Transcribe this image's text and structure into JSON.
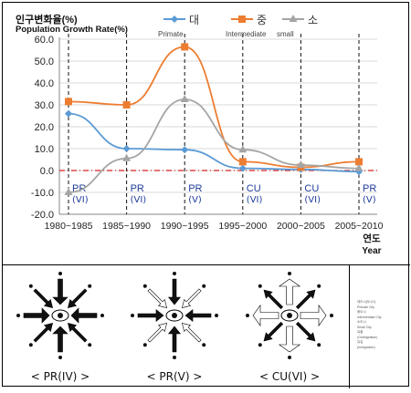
{
  "chart_data": {
    "type": "line",
    "ylabel_ko": "인구변화율(%)",
    "ylabel_en": "Population Growth Rate(%)",
    "xlabel_ko": "연도",
    "xlabel_en": "Year",
    "categories": [
      "1980~1985",
      "1985~1990",
      "1990~1995",
      "1995~2000",
      "2000~2005",
      "2005~2010"
    ],
    "ylim": [
      -20,
      60
    ],
    "yticks": [
      "60.0",
      "50.0",
      "40.0",
      "30.0",
      "20.0",
      "10.0",
      "0.0",
      "-10.0",
      "-20.0"
    ],
    "ytick_values": [
      60,
      50,
      40,
      30,
      20,
      10,
      0,
      -10,
      -20
    ],
    "grid": true,
    "legend_position": "top",
    "series": [
      {
        "name": "대",
        "sub": "Primate",
        "color": "#5b9bd5",
        "marker": "diamond",
        "values": [
          26.0,
          10.0,
          9.5,
          1.0,
          0.5,
          -0.5
        ]
      },
      {
        "name": "중",
        "sub": "Intermediate",
        "color": "#ed7d31",
        "marker": "square",
        "values": [
          31.5,
          30.0,
          56.5,
          4.0,
          1.5,
          4.0
        ]
      },
      {
        "name": "소",
        "sub": "small",
        "color": "#a5a5a5",
        "marker": "triangle",
        "values": [
          -10.0,
          5.5,
          32.5,
          9.5,
          2.5,
          1.0
        ]
      }
    ],
    "stage_labels": [
      {
        "code": "PR",
        "num": "(VI)",
        "color": "#1f3d9c"
      },
      {
        "code": "PR",
        "num": "(VI)",
        "color": "#1f3d9c"
      },
      {
        "code": "PR",
        "num": "(Ⅴ)",
        "color": "#1f3d9c"
      },
      {
        "code": "CU",
        "num": "(VI)",
        "color": "#1f3d9c"
      },
      {
        "code": "CU",
        "num": "(VI)",
        "color": "#1f3d9c"
      },
      {
        "code": "PR",
        "num": "(Ⅴ)",
        "color": "#1f3d9c"
      }
    ]
  },
  "panels": [
    {
      "caption": "< PR(IV) >"
    },
    {
      "caption": "< PR(Ⅴ) >"
    },
    {
      "caption": "< CU(VI) >"
    }
  ],
  "legend_small": [
    "대도시(도시1)",
    "Primate City",
    "중도시",
    "Intermediate City",
    "소도시",
    "Small City",
    "유출",
    "(Outmigration)",
    "유입",
    "(Inmigration)"
  ]
}
